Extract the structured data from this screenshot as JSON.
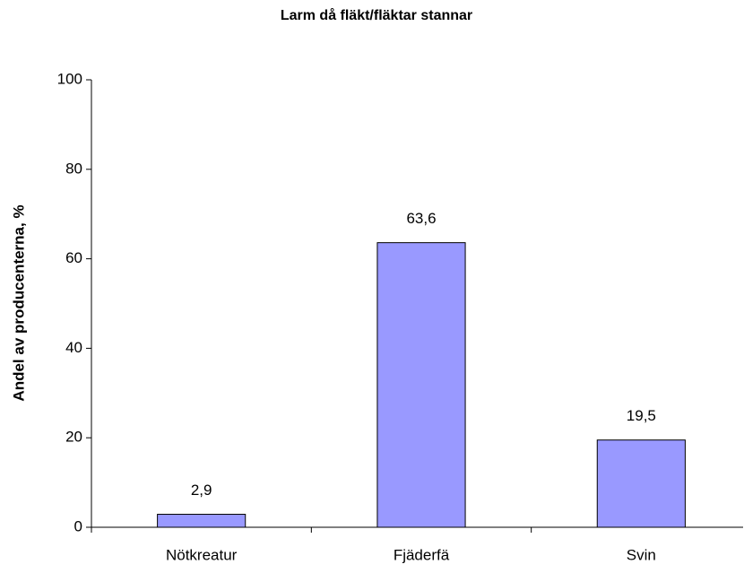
{
  "chart_data": {
    "type": "bar",
    "title": "Larm då fläkt/fläktar stannar",
    "y_label": "Andel av producenterna, %",
    "categories": [
      "Nötkreatur",
      "Fjäderfä",
      "Svin"
    ],
    "values": [
      2.9,
      63.6,
      19.5
    ],
    "value_labels": [
      "2,9",
      "63,6",
      "19,5"
    ],
    "color": "#9999ff",
    "ylim": [
      0,
      100
    ],
    "yticks": [
      0,
      20,
      40,
      60,
      80,
      100
    ],
    "grid": false
  }
}
